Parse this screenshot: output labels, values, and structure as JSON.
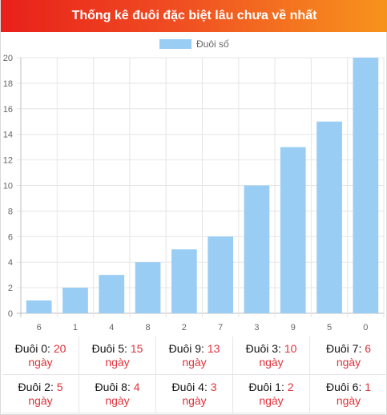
{
  "header": {
    "title": "Thống kê đuôi đặc biệt lâu chưa về nhất"
  },
  "chart_data": {
    "type": "bar",
    "title": "",
    "xlabel": "",
    "ylabel": "",
    "categories": [
      "6",
      "1",
      "4",
      "8",
      "2",
      "7",
      "3",
      "9",
      "5",
      "0"
    ],
    "series": [
      {
        "name": "Đuôi số",
        "values": [
          1,
          2,
          3,
          4,
          5,
          6,
          10,
          13,
          15,
          20
        ],
        "color": "#99cdf4"
      }
    ],
    "ylim": [
      0,
      20
    ],
    "yticks": [
      0,
      2,
      4,
      6,
      8,
      10,
      12,
      14,
      16,
      18,
      20
    ],
    "grid": true,
    "legend": "top-center"
  },
  "stats": [
    {
      "label": "Đuôi 0:",
      "value": "20",
      "unit": "ngày"
    },
    {
      "label": "Đuôi 5:",
      "value": "15",
      "unit": "ngày"
    },
    {
      "label": "Đuôi 9:",
      "value": "13",
      "unit": "ngày"
    },
    {
      "label": "Đuôi 3:",
      "value": "10",
      "unit": "ngày"
    },
    {
      "label": "Đuôi 7:",
      "value": "6",
      "unit": "ngày"
    },
    {
      "label": "Đuôi 2:",
      "value": "5",
      "unit": "ngày"
    },
    {
      "label": "Đuôi 8:",
      "value": "4",
      "unit": "ngày"
    },
    {
      "label": "Đuôi 4:",
      "value": "3",
      "unit": "ngày"
    },
    {
      "label": "Đuôi 1:",
      "value": "2",
      "unit": "ngày"
    },
    {
      "label": "Đuôi 6:",
      "value": "1",
      "unit": "ngày"
    }
  ]
}
